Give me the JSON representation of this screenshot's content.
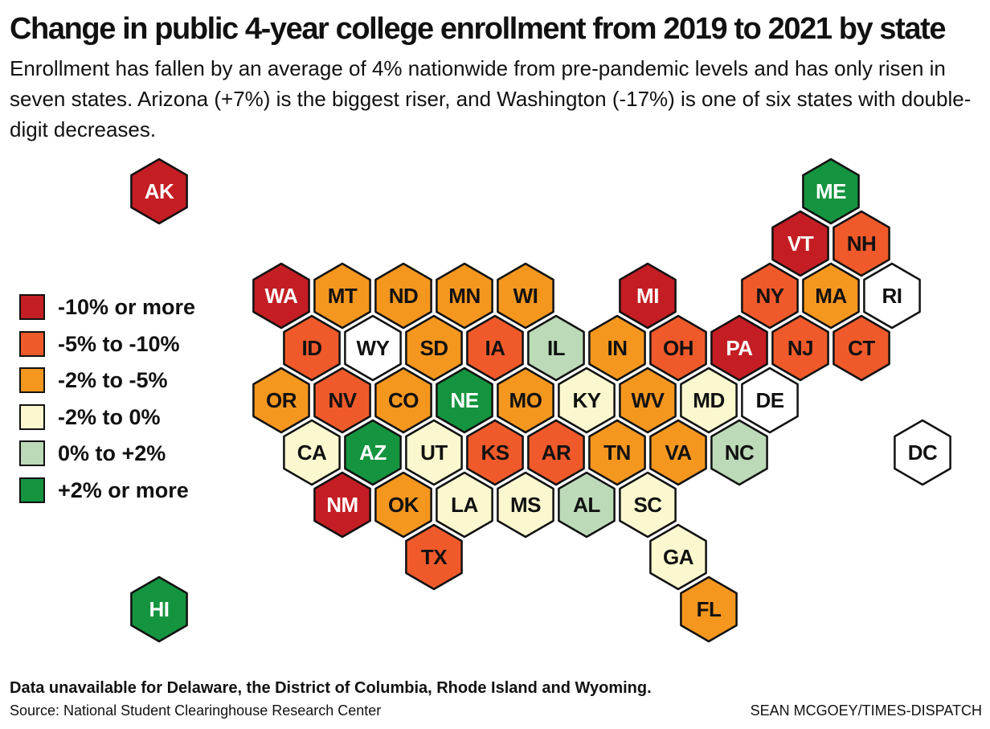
{
  "title": "Change in public 4-year college enrollment from 2019 to 2021 by state",
  "subtitle": "Enrollment has fallen by an average of 4% nationwide from pre-pandemic levels and has only risen in seven states. Arizona (+7%) is the biggest riser, and Washington (-17%) is one of six states with double-digit decreases.",
  "colors": {
    "r1": "#c41e24",
    "r2": "#f05a2b",
    "r3": "#f5971f",
    "r4": "#fbf8cf",
    "r5": "#bcdab8",
    "r6": "#15943f",
    "na": "#ffffff",
    "stroke": "#111111"
  },
  "legend": [
    {
      "key": "r1",
      "label": "-10% or more"
    },
    {
      "key": "r2",
      "label": "-5% to -10%"
    },
    {
      "key": "r3",
      "label": "-2% to -5%"
    },
    {
      "key": "r4",
      "label": "-2% to 0%"
    },
    {
      "key": "r5",
      "label": "0% to +2%"
    },
    {
      "key": "r6",
      "label": "+2% or more"
    }
  ],
  "states": [
    {
      "abbr": "AK",
      "cat": "r1",
      "row": 0,
      "col": 2
    },
    {
      "abbr": "ME",
      "cat": "r6",
      "row": 0,
      "col": 13
    },
    {
      "abbr": "VT",
      "cat": "r1",
      "row": 1,
      "col": 12
    },
    {
      "abbr": "NH",
      "cat": "r2",
      "row": 1,
      "col": 13
    },
    {
      "abbr": "WA",
      "cat": "r1",
      "row": 2,
      "col": 4
    },
    {
      "abbr": "MT",
      "cat": "r3",
      "row": 2,
      "col": 5
    },
    {
      "abbr": "ND",
      "cat": "r3",
      "row": 2,
      "col": 6
    },
    {
      "abbr": "MN",
      "cat": "r3",
      "row": 2,
      "col": 7
    },
    {
      "abbr": "WI",
      "cat": "r3",
      "row": 2,
      "col": 8
    },
    {
      "abbr": "MI",
      "cat": "r1",
      "row": 2,
      "col": 10
    },
    {
      "abbr": "NY",
      "cat": "r2",
      "row": 2,
      "col": 12
    },
    {
      "abbr": "MA",
      "cat": "r3",
      "row": 2,
      "col": 13
    },
    {
      "abbr": "RI",
      "cat": "na",
      "row": 2,
      "col": 14
    },
    {
      "abbr": "ID",
      "cat": "r2",
      "row": 3,
      "col": 4
    },
    {
      "abbr": "WY",
      "cat": "na",
      "row": 3,
      "col": 5
    },
    {
      "abbr": "SD",
      "cat": "r3",
      "row": 3,
      "col": 6
    },
    {
      "abbr": "IA",
      "cat": "r2",
      "row": 3,
      "col": 7
    },
    {
      "abbr": "IL",
      "cat": "r5",
      "row": 3,
      "col": 8
    },
    {
      "abbr": "IN",
      "cat": "r3",
      "row": 3,
      "col": 9
    },
    {
      "abbr": "OH",
      "cat": "r2",
      "row": 3,
      "col": 10
    },
    {
      "abbr": "PA",
      "cat": "r1",
      "row": 3,
      "col": 11
    },
    {
      "abbr": "NJ",
      "cat": "r2",
      "row": 3,
      "col": 12
    },
    {
      "abbr": "CT",
      "cat": "r2",
      "row": 3,
      "col": 13
    },
    {
      "abbr": "OR",
      "cat": "r3",
      "row": 4,
      "col": 4
    },
    {
      "abbr": "NV",
      "cat": "r2",
      "row": 4,
      "col": 5
    },
    {
      "abbr": "CO",
      "cat": "r3",
      "row": 4,
      "col": 6
    },
    {
      "abbr": "NE",
      "cat": "r6",
      "row": 4,
      "col": 7
    },
    {
      "abbr": "MO",
      "cat": "r3",
      "row": 4,
      "col": 8
    },
    {
      "abbr": "KY",
      "cat": "r4",
      "row": 4,
      "col": 9
    },
    {
      "abbr": "WV",
      "cat": "r3",
      "row": 4,
      "col": 10
    },
    {
      "abbr": "MD",
      "cat": "r4",
      "row": 4,
      "col": 11
    },
    {
      "abbr": "DE",
      "cat": "na",
      "row": 4,
      "col": 12
    },
    {
      "abbr": "CA",
      "cat": "r4",
      "row": 5,
      "col": 4
    },
    {
      "abbr": "AZ",
      "cat": "r6",
      "row": 5,
      "col": 5
    },
    {
      "abbr": "UT",
      "cat": "r4",
      "row": 5,
      "col": 6
    },
    {
      "abbr": "KS",
      "cat": "r2",
      "row": 5,
      "col": 7
    },
    {
      "abbr": "AR",
      "cat": "r2",
      "row": 5,
      "col": 8
    },
    {
      "abbr": "TN",
      "cat": "r3",
      "row": 5,
      "col": 9
    },
    {
      "abbr": "VA",
      "cat": "r3",
      "row": 5,
      "col": 10
    },
    {
      "abbr": "NC",
      "cat": "r5",
      "row": 5,
      "col": 11
    },
    {
      "abbr": "DC",
      "cat": "na",
      "row": 5,
      "col": 14
    },
    {
      "abbr": "NM",
      "cat": "r1",
      "row": 6,
      "col": 5
    },
    {
      "abbr": "OK",
      "cat": "r3",
      "row": 6,
      "col": 6
    },
    {
      "abbr": "LA",
      "cat": "r4",
      "row": 6,
      "col": 7
    },
    {
      "abbr": "MS",
      "cat": "r4",
      "row": 6,
      "col": 8
    },
    {
      "abbr": "AL",
      "cat": "r5",
      "row": 6,
      "col": 9
    },
    {
      "abbr": "SC",
      "cat": "r4",
      "row": 6,
      "col": 10
    },
    {
      "abbr": "TX",
      "cat": "r2",
      "row": 7,
      "col": 6
    },
    {
      "abbr": "GA",
      "cat": "r4",
      "row": 7,
      "col": 10
    },
    {
      "abbr": "HI",
      "cat": "r6",
      "row": 8,
      "col": 2
    },
    {
      "abbr": "FL",
      "cat": "r3",
      "row": 8,
      "col": 11
    }
  ],
  "footnote": "Data unavailable for Delaware, the District of Columbia, Rhode Island and Wyoming.",
  "source": "Source: National Student Clearinghouse Research Center",
  "credit": "SEAN MCGOEY/TIMES-DISPATCH"
}
